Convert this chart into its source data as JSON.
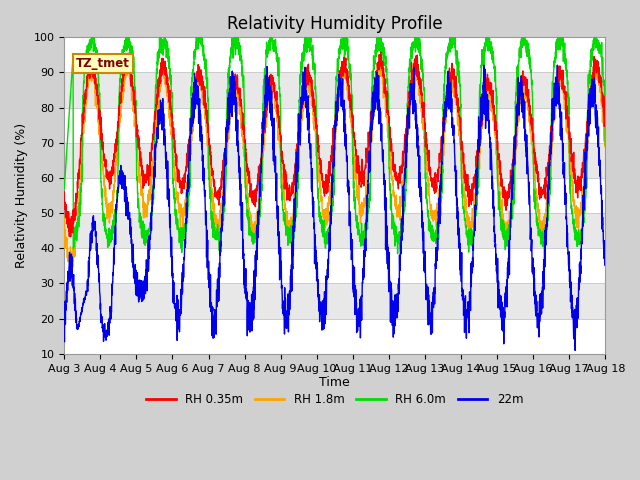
{
  "title": "Relativity Humidity Profile",
  "xlabel": "Time",
  "ylabel": "Relativity Humidity (%)",
  "ylim": [
    10,
    100
  ],
  "xlim": [
    0,
    15
  ],
  "x_tick_labels": [
    "Aug 3",
    "Aug 4",
    "Aug 5",
    "Aug 6",
    "Aug 7",
    "Aug 8",
    "Aug 9",
    "Aug 10",
    "Aug 11",
    "Aug 12",
    "Aug 13",
    "Aug 14",
    "Aug 15",
    "Aug 16",
    "Aug 17",
    "Aug 18"
  ],
  "annotation_text": "TZ_tmet",
  "line_colors": {
    "rh035": "#ff0000",
    "rh18": "#ffa500",
    "rh60": "#00dd00",
    "rh22": "#0000ee"
  },
  "legend_labels": [
    "RH 0.35m",
    "RH 1.8m",
    "RH 6.0m",
    "22m"
  ],
  "title_fontsize": 12,
  "axis_label_fontsize": 9,
  "tick_fontsize": 8,
  "band_colors": [
    "#ffffff",
    "#e8e8e8"
  ],
  "fig_bg": "#d0d0d0",
  "plot_bg": "#ffffff"
}
